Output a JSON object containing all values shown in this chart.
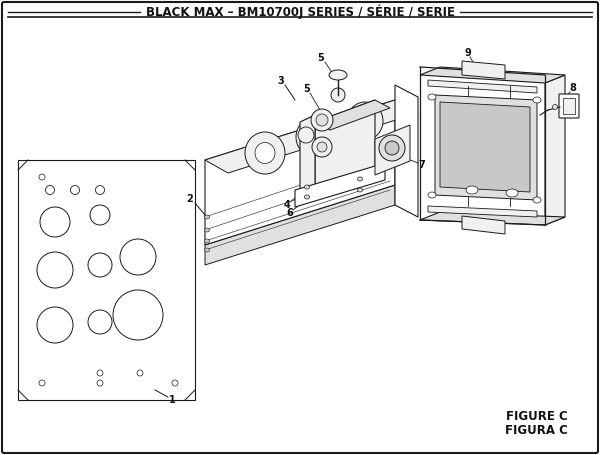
{
  "title": "BLACK MAX – BM10700J SERIES / SÉRIE / SERIE",
  "figure_label": "FIGURE C",
  "figura_label": "FIGURA C",
  "bg_color": "#ffffff",
  "border_color": "#222222",
  "text_color": "#111111",
  "title_fontsize": 8.5,
  "fig_width": 6.0,
  "fig_height": 4.55,
  "dpi": 100
}
